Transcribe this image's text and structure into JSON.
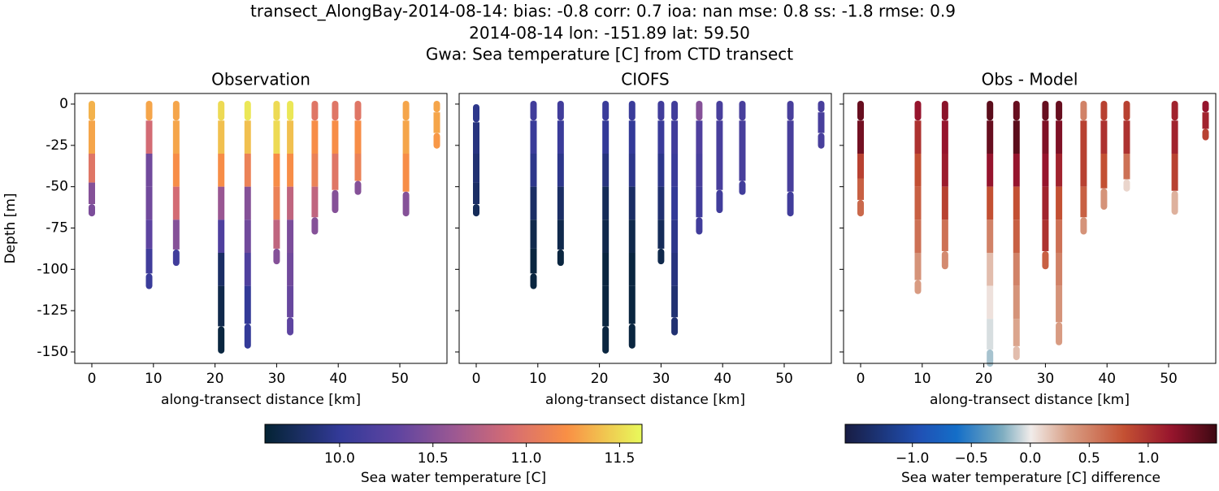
{
  "title": [
    "transect_AlongBay-2014-08-14: bias: -0.8  corr: 0.7  ioa: nan  mse: 0.8  ss: -1.8  rmse: 0.9",
    "2014-08-14 lon: -151.89 lat: 59.50",
    "Gwa: Sea temperature [C] from CTD transect"
  ],
  "chart_data": [
    {
      "type": "scatter",
      "title": "Observation",
      "xlabel": "along-transect distance [km]",
      "ylabel": "Depth [m]",
      "xlim": [
        -2.77,
        57.65
      ],
      "ylim": [
        -156.9,
        6.4
      ],
      "xticks": [
        0,
        10,
        20,
        30,
        40,
        50
      ],
      "yticks": [
        0,
        -25,
        -50,
        -75,
        -100,
        -125,
        -150
      ],
      "cmap": "thermal",
      "clim": [
        9.6,
        11.62
      ],
      "casts": [
        {
          "x": 0,
          "depth": [
            0,
            -20,
            -40,
            -55,
            -66
          ],
          "values": [
            11.35,
            11.3,
            11.0,
            10.5,
            10.45
          ]
        },
        {
          "x": 9.3,
          "depth": [
            0,
            -20,
            -40,
            -60,
            -80,
            -95,
            -110
          ],
          "values": [
            11.3,
            10.9,
            10.4,
            10.4,
            10.3,
            10.1,
            10.05
          ]
        },
        {
          "x": 13.7,
          "depth": [
            0,
            -20,
            -40,
            -60,
            -80,
            -96
          ],
          "values": [
            11.3,
            11.3,
            11.2,
            10.9,
            10.5,
            10.1
          ]
        },
        {
          "x": 21,
          "depth": [
            0,
            -20,
            -40,
            -60,
            -80,
            -100,
            -120,
            -149
          ],
          "values": [
            11.5,
            11.4,
            11.2,
            10.6,
            10.2,
            9.8,
            9.7,
            9.65
          ]
        },
        {
          "x": 25.3,
          "depth": [
            0,
            -20,
            -40,
            -60,
            -80,
            -100,
            -120,
            -146
          ],
          "values": [
            11.55,
            11.4,
            11.1,
            10.5,
            10.4,
            10.2,
            10.0,
            10.0
          ]
        },
        {
          "x": 30,
          "depth": [
            0,
            -20,
            -40,
            -60,
            -80,
            -95
          ],
          "values": [
            11.5,
            11.5,
            11.2,
            11.1,
            10.8,
            10.5
          ]
        },
        {
          "x": 32.2,
          "depth": [
            0,
            -20,
            -40,
            -60,
            -80,
            -100,
            -120,
            -138
          ],
          "values": [
            11.55,
            11.4,
            11.2,
            10.8,
            10.45,
            10.4,
            10.35,
            10.3
          ]
        },
        {
          "x": 36.2,
          "depth": [
            0,
            -20,
            -40,
            -60,
            -77
          ],
          "values": [
            11.0,
            11.2,
            11.1,
            10.8,
            10.5
          ]
        },
        {
          "x": 39.5,
          "depth": [
            0,
            -20,
            -40,
            -64
          ],
          "values": [
            11.0,
            11.2,
            11.0,
            10.5
          ]
        },
        {
          "x": 43.2,
          "depth": [
            0,
            -20,
            -40,
            -53
          ],
          "values": [
            11.0,
            11.2,
            11.1,
            10.5
          ]
        },
        {
          "x": 51,
          "depth": [
            0,
            -20,
            -40,
            -66
          ],
          "values": [
            11.3,
            11.3,
            11.2,
            10.5
          ]
        },
        {
          "x": 56,
          "depth": [
            0,
            -10,
            -25
          ],
          "values": [
            11.3,
            11.3,
            11.25
          ]
        }
      ],
      "colorbar": {
        "label": "Sea water temperature [C]",
        "ticks": [
          {
            "value": 10,
            "label": "10.0"
          },
          10.5,
          {
            "value": 11,
            "label": "11.0"
          },
          11.5
        ]
      }
    },
    {
      "type": "scatter",
      "title": "CIOFS",
      "xlabel": "along-transect distance [km]",
      "xlim": [
        -2.77,
        57.65
      ],
      "ylim": [
        -156.9,
        6.4
      ],
      "xticks": [
        0,
        10,
        20,
        30,
        40,
        50
      ],
      "sharey": true,
      "cmap": "thermal",
      "clim": [
        9.6,
        11.62
      ],
      "casts": [
        {
          "x": 0,
          "depth": [
            -2,
            -20,
            -40,
            -55,
            -66
          ],
          "values": [
            9.95,
            9.9,
            9.85,
            9.8,
            9.75
          ]
        },
        {
          "x": 9.3,
          "depth": [
            0,
            -20,
            -40,
            -60,
            -80,
            -95,
            -110
          ],
          "values": [
            10.1,
            10.05,
            9.95,
            9.8,
            9.7,
            9.65,
            9.65
          ]
        },
        {
          "x": 13.7,
          "depth": [
            0,
            -20,
            -40,
            -60,
            -80,
            -96
          ],
          "values": [
            10.1,
            10.05,
            9.95,
            9.8,
            9.7,
            9.65
          ]
        },
        {
          "x": 21,
          "depth": [
            0,
            -20,
            -40,
            -60,
            -80,
            -100,
            -120,
            -149
          ],
          "values": [
            10.05,
            10.0,
            9.9,
            9.75,
            9.7,
            9.65,
            9.65,
            9.65
          ]
        },
        {
          "x": 25.3,
          "depth": [
            0,
            -20,
            -40,
            -60,
            -80,
            -100,
            -120,
            -146
          ],
          "values": [
            10.05,
            10.0,
            9.95,
            9.8,
            9.7,
            9.65,
            9.65,
            9.65
          ]
        },
        {
          "x": 30,
          "depth": [
            0,
            -20,
            -40,
            -60,
            -80,
            -95
          ],
          "values": [
            10.1,
            10.05,
            9.95,
            9.85,
            9.75,
            9.7
          ]
        },
        {
          "x": 32.2,
          "depth": [
            0,
            -20,
            -40,
            -60,
            -80,
            -100,
            -120,
            -138
          ],
          "values": [
            10.1,
            10.1,
            10.05,
            10.0,
            9.95,
            9.9,
            9.85,
            9.85
          ]
        },
        {
          "x": 36.2,
          "depth": [
            0,
            -20,
            -40,
            -60,
            -77
          ],
          "values": [
            10.5,
            10.2,
            10.15,
            10.1,
            10.1
          ]
        },
        {
          "x": 39.5,
          "depth": [
            0,
            -20,
            -40,
            -64
          ],
          "values": [
            10.15,
            10.15,
            10.15,
            10.1
          ]
        },
        {
          "x": 43.2,
          "depth": [
            0,
            -20,
            -40,
            -53
          ],
          "values": [
            10.15,
            10.15,
            10.15,
            10.1
          ]
        },
        {
          "x": 51,
          "depth": [
            0,
            -20,
            -40,
            -66
          ],
          "values": [
            10.15,
            10.15,
            10.15,
            10.1
          ]
        },
        {
          "x": 56,
          "depth": [
            0,
            -10,
            -25
          ],
          "values": [
            10.15,
            10.15,
            10.15
          ]
        }
      ]
    },
    {
      "type": "scatter",
      "title": "Obs - Model",
      "xlabel": "along-transect distance [km]",
      "xlim": [
        -2.77,
        57.65
      ],
      "ylim": [
        -156.9,
        6.4
      ],
      "xticks": [
        0,
        10,
        20,
        30,
        40,
        50
      ],
      "sharey": true,
      "cmap": "balance",
      "clim": [
        -1.57,
        1.58
      ],
      "casts": [
        {
          "x": 0,
          "depth": [
            0,
            -20,
            -40,
            -50,
            -66
          ],
          "values": [
            1.4,
            1.35,
            0.9,
            0.7,
            0.65
          ]
        },
        {
          "x": 9.3,
          "depth": [
            0,
            -20,
            -40,
            -60,
            -80,
            -100,
            -113
          ],
          "values": [
            1.2,
            1.0,
            0.8,
            0.7,
            0.6,
            0.4,
            0.35
          ]
        },
        {
          "x": 13.7,
          "depth": [
            0,
            -20,
            -40,
            -60,
            -80,
            -98
          ],
          "values": [
            1.25,
            1.2,
            1.15,
            0.9,
            0.6,
            0.45
          ]
        },
        {
          "x": 21,
          "depth": [
            0,
            -20,
            -40,
            -60,
            -80,
            -100,
            -120,
            -140,
            -157
          ],
          "values": [
            1.45,
            1.4,
            1.2,
            0.8,
            0.5,
            0.2,
            0.05,
            -0.05,
            -0.15
          ]
        },
        {
          "x": 25.3,
          "depth": [
            0,
            -20,
            -40,
            -60,
            -80,
            -100,
            -120,
            -140,
            -153
          ],
          "values": [
            1.4,
            1.45,
            1.2,
            0.8,
            0.7,
            0.5,
            0.4,
            0.3,
            0.2
          ]
        },
        {
          "x": 30,
          "depth": [
            0,
            -20,
            -40,
            -60,
            -80,
            -98
          ],
          "values": [
            1.4,
            1.3,
            1.2,
            1.1,
            1.0,
            0.7
          ]
        },
        {
          "x": 32.2,
          "depth": [
            0,
            -20,
            -40,
            -60,
            -80,
            -100,
            -120,
            -144
          ],
          "values": [
            1.4,
            1.3,
            1.1,
            0.8,
            0.6,
            0.5,
            0.4,
            0.35
          ]
        },
        {
          "x": 36.2,
          "depth": [
            0,
            -20,
            -40,
            -60,
            -77
          ],
          "values": [
            0.5,
            0.9,
            0.9,
            0.7,
            0.4
          ]
        },
        {
          "x": 39.5,
          "depth": [
            0,
            -20,
            -40,
            -62
          ],
          "values": [
            0.9,
            1.0,
            0.8,
            0.4
          ]
        },
        {
          "x": 43.2,
          "depth": [
            0,
            -20,
            -40,
            -51
          ],
          "values": [
            0.9,
            1.0,
            0.6,
            0.1
          ]
        },
        {
          "x": 51,
          "depth": [
            0,
            -20,
            -40,
            -65
          ],
          "values": [
            1.1,
            1.1,
            0.9,
            0.25
          ]
        },
        {
          "x": 56,
          "depth": [
            0,
            -10,
            -20
          ],
          "values": [
            1.2,
            1.1,
            0.9
          ]
        }
      ],
      "colorbar": {
        "label": "Sea water temperature [C] difference",
        "ticks": [
          {
            "value": -1,
            "label": "−1.0"
          },
          {
            "value": -0.5,
            "label": "−0.5"
          },
          {
            "value": 0,
            "label": "0.0"
          },
          0.5,
          {
            "value": 1,
            "label": "1.0"
          }
        ]
      }
    }
  ]
}
